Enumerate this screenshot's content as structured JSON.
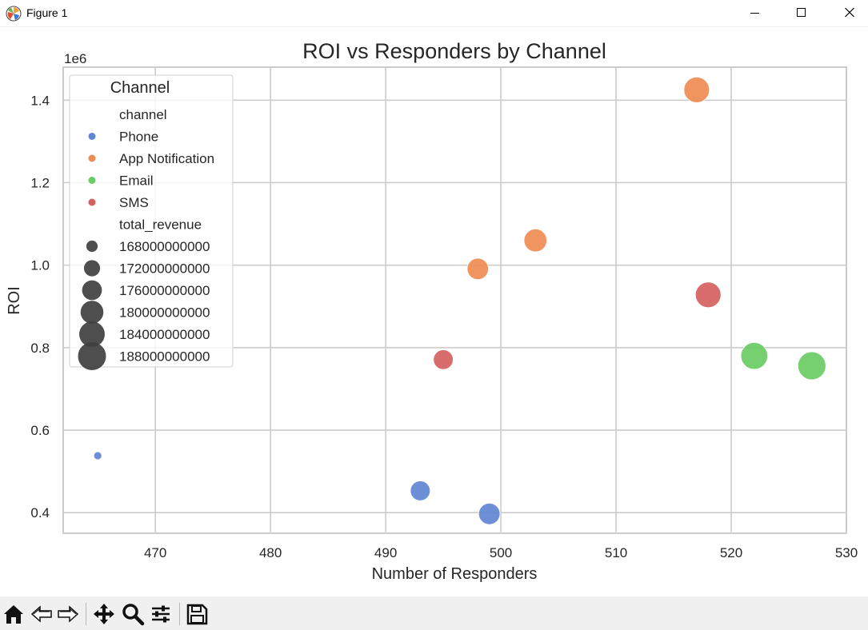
{
  "window": {
    "title": "Figure 1"
  },
  "chart_data": {
    "type": "scatter",
    "title": "ROI vs Responders by Channel",
    "xlabel": "Number of Responders",
    "ylabel": "ROI",
    "y_offset_text": "1e6",
    "xlim": [
      462,
      530
    ],
    "ylim": [
      350000,
      1480000
    ],
    "xticks": [
      470,
      480,
      490,
      500,
      510,
      520,
      530
    ],
    "yticks": [
      400000,
      600000,
      800000,
      1000000,
      1200000,
      1400000
    ],
    "ytick_labels": [
      "0.4",
      "0.6",
      "0.8",
      "1.0",
      "1.2",
      "1.4"
    ],
    "grid": true,
    "legend": {
      "title": "Channel",
      "placement": "upper left",
      "hue_title": "channel",
      "size_title": "total_revenue",
      "hue_entries": [
        {
          "label": "Phone",
          "color": "#5f86d5"
        },
        {
          "label": "App Notification",
          "color": "#ef8c53"
        },
        {
          "label": "Email",
          "color": "#6acc64"
        },
        {
          "label": "SMS",
          "color": "#d65f5f"
        }
      ],
      "size_entries": [
        {
          "label": "168000000000",
          "value": 168000000000
        },
        {
          "label": "172000000000",
          "value": 172000000000
        },
        {
          "label": "176000000000",
          "value": 176000000000
        },
        {
          "label": "180000000000",
          "value": 180000000000
        },
        {
          "label": "184000000000",
          "value": 184000000000
        },
        {
          "label": "188000000000",
          "value": 188000000000
        }
      ]
    },
    "series": [
      {
        "name": "Phone",
        "color": "#5f86d5",
        "points": [
          {
            "x": 465,
            "y": 538000,
            "size": 166000000000
          },
          {
            "x": 493,
            "y": 453000,
            "size": 176000000000
          },
          {
            "x": 499,
            "y": 397000,
            "size": 178000000000
          }
        ]
      },
      {
        "name": "App Notification",
        "color": "#ef8c53",
        "points": [
          {
            "x": 498,
            "y": 991000,
            "size": 178000000000
          },
          {
            "x": 503,
            "y": 1060000,
            "size": 180000000000
          },
          {
            "x": 517,
            "y": 1425000,
            "size": 184000000000
          }
        ]
      },
      {
        "name": "Email",
        "color": "#6acc64",
        "points": [
          {
            "x": 522,
            "y": 780000,
            "size": 186000000000
          },
          {
            "x": 527,
            "y": 756000,
            "size": 188000000000
          }
        ]
      },
      {
        "name": "SMS",
        "color": "#d65f5f",
        "points": [
          {
            "x": 495,
            "y": 771000,
            "size": 176000000000
          },
          {
            "x": 518,
            "y": 928000,
            "size": 184000000000
          }
        ]
      }
    ]
  },
  "toolbar": {
    "buttons": [
      {
        "name": "home-icon"
      },
      {
        "name": "back-arrow-icon"
      },
      {
        "name": "forward-arrow-icon"
      },
      {
        "name": "pan-move-icon"
      },
      {
        "name": "zoom-magnifier-icon"
      },
      {
        "name": "configure-subplots-icon"
      },
      {
        "name": "save-floppy-icon"
      }
    ]
  }
}
